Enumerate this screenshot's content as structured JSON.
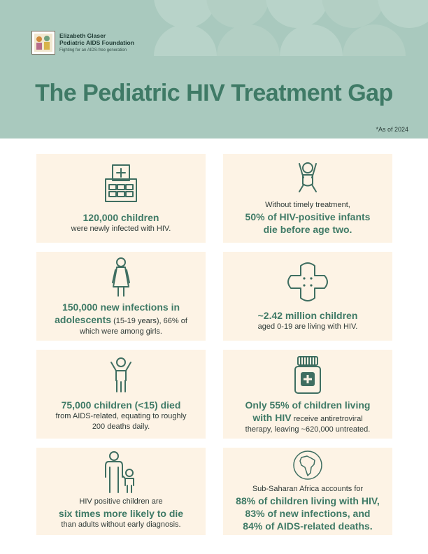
{
  "header": {
    "logo_line1": "Elizabeth Glaser",
    "logo_line2": "Pediatric AIDS Foundation",
    "logo_tagline": "Fighting for an AIDS-free generation",
    "title": "The Pediatric HIV Treatment Gap",
    "as_of": "*As of 2024"
  },
  "colors": {
    "header_bg": "#a9c9be",
    "accent": "#3f7a66",
    "card_bg": "#fdf3e5"
  },
  "cards": [
    {
      "icon": "hospital-icon",
      "highlight": "120,000 children",
      "text": "were newly infected with HIV."
    },
    {
      "icon": "infant-icon",
      "text": "Without timely treatment,",
      "highlight1": "50% of HIV-positive infants",
      "highlight2": "die before age two."
    },
    {
      "icon": "adolescent-girl-icon",
      "highlight1": "150,000 new infections in",
      "highlight2": "adolescents",
      "text1": " (15-19 years), 66% of",
      "text2": "which were among girls."
    },
    {
      "icon": "bandage-icon",
      "highlight": "~2.42 million children",
      "text": "aged 0-19 are living with HIV."
    },
    {
      "icon": "child-icon",
      "highlight": "75,000 children (<15) died",
      "text1": "from AIDS-related, equating to roughly",
      "text2": "200 deaths daily."
    },
    {
      "icon": "medicine-bottle-icon",
      "highlight1": "Only 55% of children living",
      "highlight2": "with HIV",
      "text1": " receive antiretroviral",
      "text2": "therapy, leaving ~620,000 untreated."
    },
    {
      "icon": "adult-and-child-icon",
      "text1": "HIV positive children are",
      "highlight": "six times more likely to die",
      "text2": "than adults without early diagnosis."
    },
    {
      "icon": "africa-globe-icon",
      "text": "Sub-Saharan Africa accounts for",
      "highlight1": "88% of children living with HIV,",
      "highlight2": "83% of new infections, and",
      "highlight3": "84% of AIDS-related deaths."
    }
  ]
}
